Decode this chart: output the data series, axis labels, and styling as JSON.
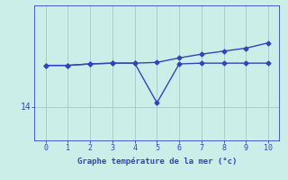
{
  "x": [
    0,
    1,
    2,
    3,
    4,
    5,
    6,
    7,
    8,
    9,
    10
  ],
  "line1": [
    14.55,
    14.55,
    14.57,
    14.58,
    14.58,
    14.59,
    14.65,
    14.7,
    14.74,
    14.78,
    14.85
  ],
  "line2": [
    14.55,
    14.55,
    14.57,
    14.58,
    14.58,
    14.05,
    14.57,
    14.58,
    14.58,
    14.58,
    14.58
  ],
  "line1_color": "#3344bb",
  "line2_color": "#3344bb",
  "bg_color": "#cceee8",
  "grid_color": "#aacccc",
  "axis_color": "#3344bb",
  "xlabel": "Graphe température de la mer (°c)",
  "xlabel_color": "#3344bb",
  "ytick_label": "14",
  "ytick_value": 14.0,
  "xlim": [
    -0.5,
    10.5
  ],
  "ylim": [
    13.55,
    15.35
  ],
  "xticks": [
    0,
    1,
    2,
    3,
    4,
    5,
    6,
    7,
    8,
    9,
    10
  ],
  "yticks": [
    14.0
  ],
  "marker": "D",
  "markersize": 2.5,
  "linewidth": 1.0
}
